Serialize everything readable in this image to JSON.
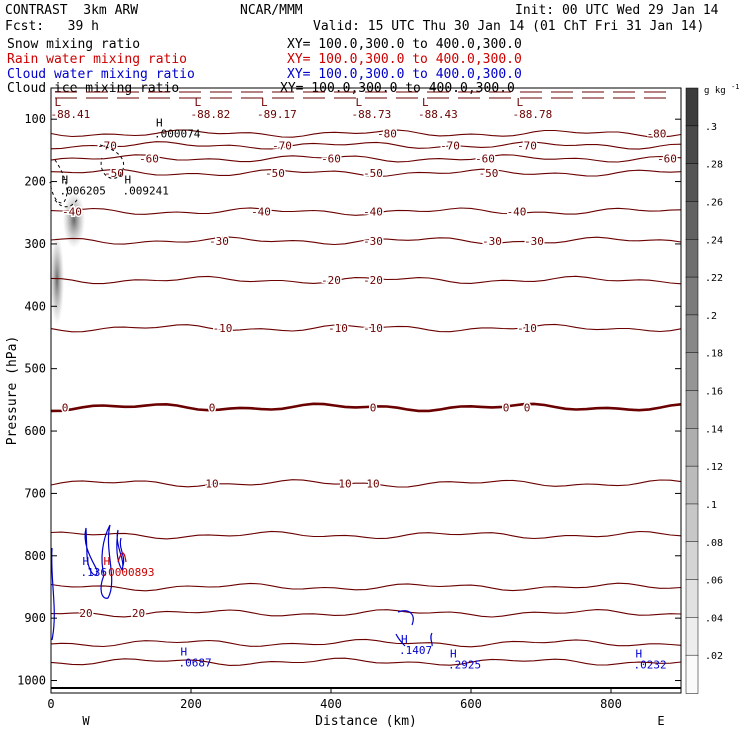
{
  "header": {
    "model": "CONTRAST  3km ARW",
    "org": "NCAR/MMM",
    "init": "Init: 00 UTC Wed 29 Jan 14",
    "fcst": "Fcst:   39 h",
    "valid": "Valid: 15 UTC Thu 30 Jan 14 (01 ChT Fri 31 Jan 14)"
  },
  "fields": [
    {
      "name": "Snow mixing ratio",
      "xy": "XY= 100.0,300.0 to 400.0,300.0",
      "color": "#000000"
    },
    {
      "name": "Rain water mixing ratio",
      "xy": "XY= 100.0,300.0 to 400.0,300.0",
      "color": "#cc0000"
    },
    {
      "name": "Cloud water mixing ratio",
      "xy": "XY= 100.0,300.0 to 400.0,300.0",
      "color": "#0000cc"
    },
    {
      "name": "Cloud ice mixing ratio",
      "xy": "XY= 100.0,300.0 to 400.0,300.0",
      "color": "#000000"
    }
  ],
  "chart_data": {
    "type": "contour-cross-section",
    "xlabel": "Distance (km)",
    "ylabel": "Pressure (hPa)",
    "xlim": [
      0,
      900
    ],
    "ylim": [
      1020,
      50
    ],
    "x_ticks": [
      0,
      200,
      400,
      600,
      800
    ],
    "y_ticks": [
      100,
      200,
      300,
      400,
      500,
      600,
      700,
      800,
      900,
      1000
    ],
    "x_end_labels": {
      "left": "W",
      "right": "E"
    },
    "colorbar": {
      "unit": "g kg",
      "unit_exp": "-1",
      "ticks": [
        ".3",
        ".28",
        ".26",
        ".24",
        ".22",
        ".2",
        ".18",
        ".16",
        ".14",
        ".12",
        ".1",
        ".08",
        ".06",
        ".04",
        ".02"
      ],
      "min": 0,
      "max": 0.32
    },
    "isotherms": [
      {
        "temp": -80,
        "pressure": 123,
        "labels": [
          480,
          865
        ]
      },
      {
        "temp": -70,
        "pressure": 142,
        "labels": [
          80,
          330,
          570,
          680
        ]
      },
      {
        "temp": -60,
        "pressure": 163,
        "labels": [
          140,
          400,
          620,
          880
        ]
      },
      {
        "temp": -50,
        "pressure": 186,
        "labels": [
          90,
          320,
          460,
          625
        ]
      },
      {
        "temp": -40,
        "pressure": 248,
        "labels": [
          30,
          300,
          460,
          665
        ]
      },
      {
        "temp": -30,
        "pressure": 295,
        "labels": [
          240,
          460,
          630,
          690
        ]
      },
      {
        "temp": -20,
        "pressure": 358,
        "labels": [
          400,
          460
        ]
      },
      {
        "temp": -10,
        "pressure": 435,
        "labels": [
          245,
          410,
          460,
          680
        ]
      },
      {
        "temp": 0,
        "pressure": 562,
        "labels": [
          20,
          230,
          460,
          650,
          680
        ]
      },
      {
        "temp": 10,
        "pressure": 684,
        "labels": [
          230,
          420,
          460
        ]
      },
      {
        "temp": 10,
        "pressure": 767,
        "labels": []
      },
      {
        "temp": 20,
        "pressure": 850,
        "labels": []
      },
      {
        "temp": 20,
        "pressure": 892,
        "labels": [
          125,
          50
        ]
      },
      {
        "temp": 20,
        "pressure": 940,
        "labels": []
      },
      {
        "temp": 20,
        "pressure": 970,
        "labels": []
      }
    ],
    "lows": [
      {
        "x": 5,
        "value": "-88.41"
      },
      {
        "x": 205,
        "value": "-88.82"
      },
      {
        "x": 300,
        "value": "-89.17"
      },
      {
        "x": 435,
        "value": "-88.73"
      },
      {
        "x": 530,
        "value": "-88.43"
      },
      {
        "x": 665,
        "value": "-88.78"
      }
    ],
    "highs": [
      {
        "x": 150,
        "p": 112,
        "value": ".000074",
        "color": "#000000"
      },
      {
        "x": 15,
        "p": 203,
        "value": ".006205",
        "color": "#000000"
      },
      {
        "x": 105,
        "p": 203,
        "value": ".009241",
        "color": "#000000"
      },
      {
        "x": 45,
        "p": 815,
        "value": ".136",
        "color": "#0000cc"
      },
      {
        "x": 75,
        "p": 815,
        "value": ".0000893",
        "color": "#cc0000"
      },
      {
        "x": 185,
        "p": 960,
        "value": ".0687",
        "color": "#0000cc"
      },
      {
        "x": 500,
        "p": 940,
        "value": ".1407",
        "color": "#0000cc"
      },
      {
        "x": 570,
        "p": 963,
        "value": ".2925",
        "color": "#0000cc"
      },
      {
        "x": 835,
        "p": 963,
        "value": ".0232",
        "color": "#0000cc"
      }
    ]
  },
  "colors": {
    "isotherm": "#6b0000",
    "zero_isotherm": "#6b0000",
    "cloud_water": "#0000cc",
    "rain": "#cc0000",
    "axis": "#000000"
  }
}
